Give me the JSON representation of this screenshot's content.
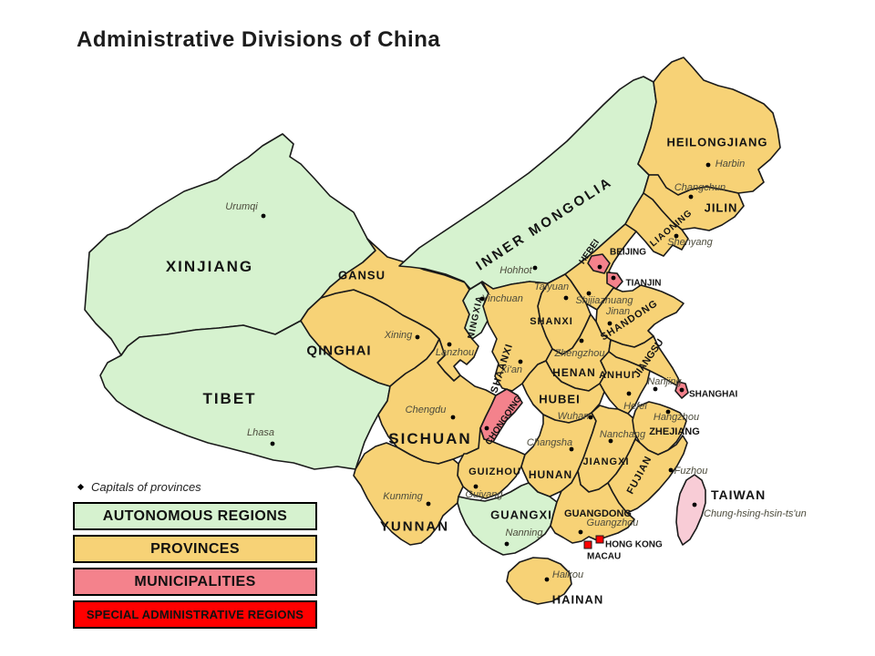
{
  "title": "Administrative Divisions of China",
  "colors": {
    "autonomous_region": "#d6f2cf",
    "province": "#f7d276",
    "municipality": "#f4828c",
    "special_administrative_region": "#ff0000",
    "taiwan": "#f8ccd6",
    "border": "#1a1a1a",
    "capital_text": "#4c4b3c",
    "background": "#ffffff"
  },
  "legend": {
    "capitals_note": "Capitals of provinces",
    "items": [
      {
        "label": "AUTONOMOUS REGIONS",
        "type": "autonomous_region"
      },
      {
        "label": "PROVINCES",
        "type": "province"
      },
      {
        "label": "MUNICIPALITIES",
        "type": "municipality"
      },
      {
        "label": "SPECIAL ADMINISTRATIVE REGIONS",
        "type": "special_administrative_region"
      }
    ]
  },
  "regions": [
    {
      "id": "xinjiang",
      "name": "XINJIANG",
      "type": "autonomous_region",
      "capital": "Urumqi"
    },
    {
      "id": "tibet",
      "name": "TIBET",
      "type": "autonomous_region",
      "capital": "Lhasa"
    },
    {
      "id": "qinghai",
      "name": "QINGHAI",
      "type": "province",
      "capital": "Xining"
    },
    {
      "id": "gansu",
      "name": "GANSU",
      "type": "province",
      "capital": "Lanzhou"
    },
    {
      "id": "inner_mongolia",
      "name": "INNER MONGOLIA",
      "type": "autonomous_region",
      "capital": "Hohhot"
    },
    {
      "id": "ningxia",
      "name": "NINGXIA",
      "type": "autonomous_region",
      "capital": "Yinchuan"
    },
    {
      "id": "heilongjiang",
      "name": "HEILONGJIANG",
      "type": "province",
      "capital": "Harbin"
    },
    {
      "id": "jilin",
      "name": "JILIN",
      "type": "province",
      "capital": "Changchun"
    },
    {
      "id": "liaoning",
      "name": "LIAONING",
      "type": "province",
      "capital": "Shenyang"
    },
    {
      "id": "hebei",
      "name": "HEBEI",
      "type": "province",
      "capital": "Shijiazhuang"
    },
    {
      "id": "shanxi",
      "name": "SHANXI",
      "type": "province",
      "capital": "Taiyuan"
    },
    {
      "id": "shaanxi",
      "name": "SHAANXI",
      "type": "province",
      "capital": "Xi'an"
    },
    {
      "id": "shandong",
      "name": "SHANDONG",
      "type": "province",
      "capital": "Jinan"
    },
    {
      "id": "henan",
      "name": "HENAN",
      "type": "province",
      "capital": "Zhengzhou"
    },
    {
      "id": "jiangsu",
      "name": "JIANGSU",
      "type": "province",
      "capital": "Nanjing"
    },
    {
      "id": "anhui",
      "name": "ANHUI",
      "type": "province",
      "capital": "Hefei"
    },
    {
      "id": "hubei",
      "name": "HUBEI",
      "type": "province",
      "capital": "Wuhan"
    },
    {
      "id": "sichuan",
      "name": "SICHUAN",
      "type": "province",
      "capital": "Chengdu"
    },
    {
      "id": "chongqing",
      "name": "CHONGQING",
      "type": "municipality"
    },
    {
      "id": "guizhou",
      "name": "GUIZHOU",
      "type": "province",
      "capital": "Guiyang"
    },
    {
      "id": "hunan",
      "name": "HUNAN",
      "type": "province",
      "capital": "Changsha"
    },
    {
      "id": "jiangxi",
      "name": "JIANGXI",
      "type": "province",
      "capital": "Nanchang"
    },
    {
      "id": "zhejiang",
      "name": "ZHEJIANG",
      "type": "province",
      "capital": "Hangzhou"
    },
    {
      "id": "fujian",
      "name": "FUJIAN",
      "type": "province",
      "capital": "Fuzhou"
    },
    {
      "id": "yunnan",
      "name": "YUNNAN",
      "type": "province",
      "capital": "Kunming"
    },
    {
      "id": "guangxi",
      "name": "GUANGXI",
      "type": "autonomous_region",
      "capital": "Nanning"
    },
    {
      "id": "guangdong",
      "name": "GUANGDONG",
      "type": "province",
      "capital": "Guangzhou"
    },
    {
      "id": "hainan",
      "name": "HAINAN",
      "type": "province",
      "capital": "Haikou"
    },
    {
      "id": "taiwan",
      "name": "TAIWAN",
      "type": "taiwan",
      "capital": "Chung-hsing-hsin-ts'un"
    },
    {
      "id": "beijing",
      "name": "BEIJING",
      "type": "municipality"
    },
    {
      "id": "tianjin",
      "name": "TIANJIN",
      "type": "municipality"
    },
    {
      "id": "shanghai",
      "name": "SHANGHAI",
      "type": "municipality"
    },
    {
      "id": "hong_kong",
      "name": "HONG KONG",
      "type": "special_administrative_region"
    },
    {
      "id": "macau",
      "name": "MACAU",
      "type": "special_administrative_region"
    }
  ]
}
